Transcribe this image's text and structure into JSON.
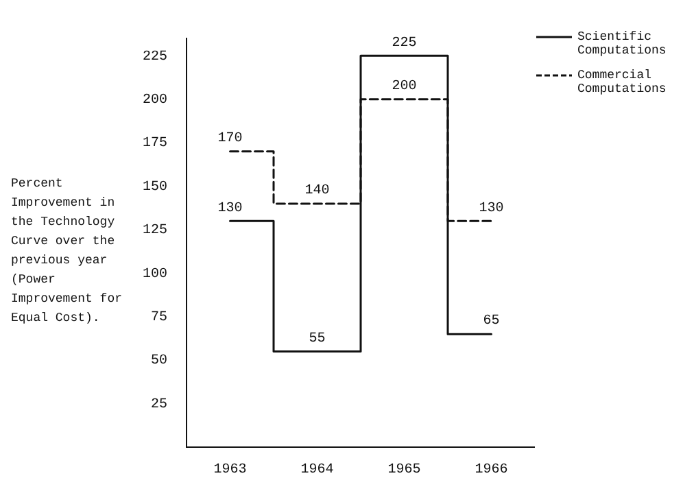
{
  "chart_data": {
    "type": "step",
    "ylabel": "Percent Improvement in the Technology Curve over the previous year (Power Improvement for Equal Cost).",
    "categories": [
      "1963",
      "1964",
      "1965",
      "1966"
    ],
    "series": [
      {
        "name": "Scientific Computations",
        "color": "#111111",
        "values": [
          130,
          55,
          225,
          65
        ],
        "line_style": "solid"
      },
      {
        "name": "Commercial Computations",
        "color": "#111111",
        "values": [
          170,
          140,
          200,
          130
        ],
        "line_style": "dashed"
      }
    ],
    "ylim": [
      0,
      235
    ],
    "yticks": [
      25,
      50,
      75,
      100,
      125,
      150,
      175,
      200,
      225
    ],
    "grid": false,
    "legend": "top right",
    "marker": "none",
    "data_labels": true
  }
}
